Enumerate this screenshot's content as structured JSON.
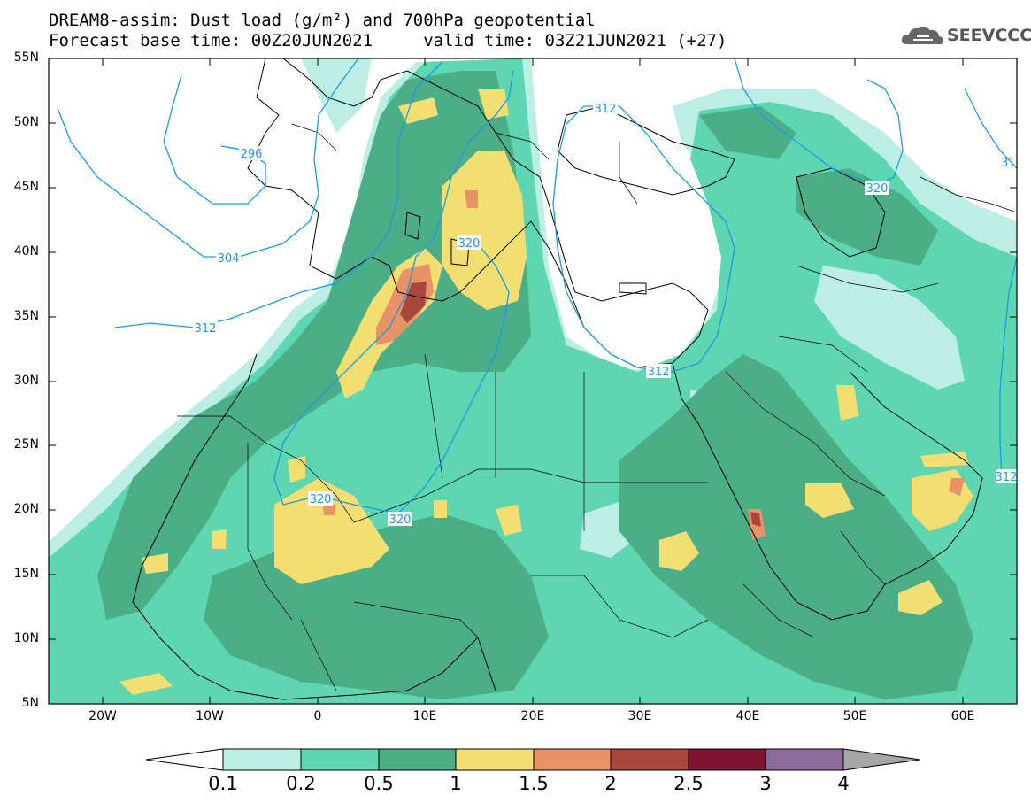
{
  "title": {
    "line1": "DREAM8-assim: Dust load (g/m²) and 700hPa geopotential",
    "line2": "Forecast base time: 00Z20JUN2021     valid time: 03Z21JUN2021 (+27)"
  },
  "logo": {
    "text": "SEEVCCC",
    "icon": "cloud-icon"
  },
  "map": {
    "lon_range": [
      -25,
      65
    ],
    "lat_range": [
      5,
      55
    ],
    "lat_ticks": [
      "55N",
      "50N",
      "45N",
      "40N",
      "35N",
      "30N",
      "25N",
      "20N",
      "15N",
      "10N",
      "5N"
    ],
    "lon_ticks": [
      "20W",
      "10W",
      "0",
      "10E",
      "20E",
      "30E",
      "40E",
      "50E",
      "60E"
    ],
    "contour_labels": [
      "296",
      "304",
      "312",
      "312",
      "312",
      "320",
      "320",
      "320",
      "320",
      "312",
      "31"
    ]
  },
  "colorbar": {
    "labels": [
      "0.1",
      "0.2",
      "0.5",
      "1",
      "1.5",
      "2",
      "2.5",
      "3",
      "4"
    ],
    "colors": [
      "#ffffff",
      "#bdeee6",
      "#5fd6b2",
      "#4cae87",
      "#f2de71",
      "#e79267",
      "#a8483c",
      "#7c1432",
      "#8c6a9c",
      "#a6a6a6"
    ]
  },
  "colors": {
    "dust_0": "#bdeee6",
    "dust_1": "#5fd6b2",
    "dust_2": "#4cae87",
    "dust_3": "#f2de71",
    "dust_4": "#e79267",
    "dust_5": "#a8483c",
    "contour": "#1a9be6"
  }
}
